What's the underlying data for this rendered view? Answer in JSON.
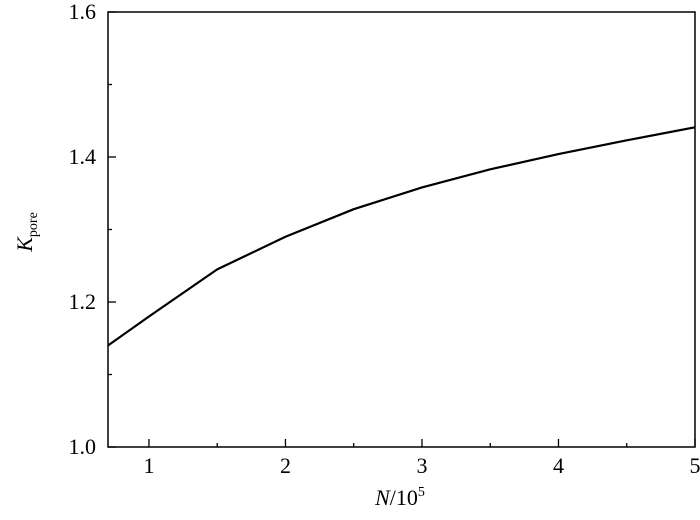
{
  "chart_data": {
    "type": "line",
    "xlabel": {
      "symbol": "N",
      "text": "/10",
      "superscript": "5"
    },
    "ylabel": {
      "symbol": "K",
      "subscript": "pore"
    },
    "x": [
      0.7,
      1,
      1.5,
      2,
      2.5,
      3,
      3.5,
      4,
      4.5,
      5
    ],
    "series": [
      {
        "color": "#000000",
        "values": [
          1.14,
          1.18,
          1.245,
          1.29,
          1.328,
          1.358,
          1.383,
          1.404,
          1.423,
          1.441
        ]
      }
    ],
    "xlim": [
      0.7,
      5
    ],
    "xticks": [
      1,
      2,
      3,
      4,
      5
    ],
    "xminor": [
      1.5,
      2.5,
      3.5,
      4.5
    ],
    "ylim": [
      1.0,
      1.6
    ],
    "yticks": [
      {
        "value": 1.0,
        "label": "1.0"
      },
      1.2,
      1.4,
      1.6
    ],
    "yminor": [
      1.1,
      1.3,
      1.5
    ],
    "grid": false
  }
}
